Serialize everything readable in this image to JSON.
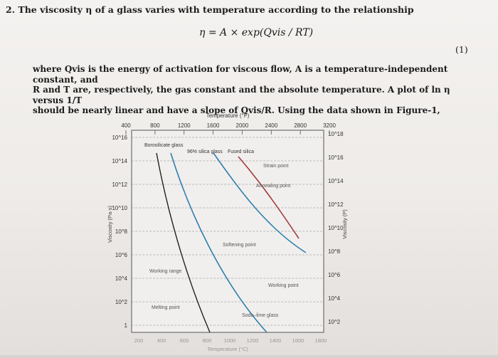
{
  "question": {
    "number": "2.",
    "text": "The viscosity η of a glass varies with temperature according to the relationship",
    "equation": "η = A × exp(Qvis / RT)",
    "equation_number": "(1)",
    "paragraph_line1": "where Qvis is the energy of activation for viscous flow, A is a temperature-independent constant, and",
    "paragraph_line2": "R and T are, respectively, the gas constant and the absolute temperature. A plot of ln η versus 1/T",
    "paragraph_line3": "should be nearly linear and have a slope of Qvis/R. Using the data shown in Figure-1,"
  },
  "chart_data": {
    "type": "line",
    "top_axis_label": "Temperature (°F)",
    "top_ticks": [
      "400",
      "800",
      "1200",
      "1600",
      "2000",
      "2400",
      "2800",
      "3200"
    ],
    "bottom_ticks": [
      "200",
      "400",
      "600",
      "800",
      "1000",
      "1200",
      "1400",
      "1600",
      "1800"
    ],
    "bottom_axis_label": "Temperature (°C)",
    "left_axis_label": "Viscosity (Pa·s)",
    "right_axis_label": "Viscosity (P)",
    "left_ticks": [
      "10^16",
      "10^14",
      "10^12",
      "10^10",
      "10^8",
      "10^6",
      "10^4",
      "10^2",
      "1"
    ],
    "right_ticks": [
      "10^18",
      "10^16",
      "10^14",
      "10^12",
      "10^10",
      "10^8",
      "10^6",
      "10^4",
      "10^2"
    ],
    "series": [
      {
        "name": "Borosilicate glass",
        "color": "#2e7fb0"
      },
      {
        "name": "96% silica glass",
        "color": "#2e7fb0"
      },
      {
        "name": "Fused silica",
        "color": "#a23a3a"
      },
      {
        "name": "Soda–lime glass",
        "color": "#222222"
      }
    ],
    "annotations": [
      "Strain point",
      "Annealing point",
      "Softening point",
      "Working point",
      "Working range",
      "Melting point"
    ]
  }
}
